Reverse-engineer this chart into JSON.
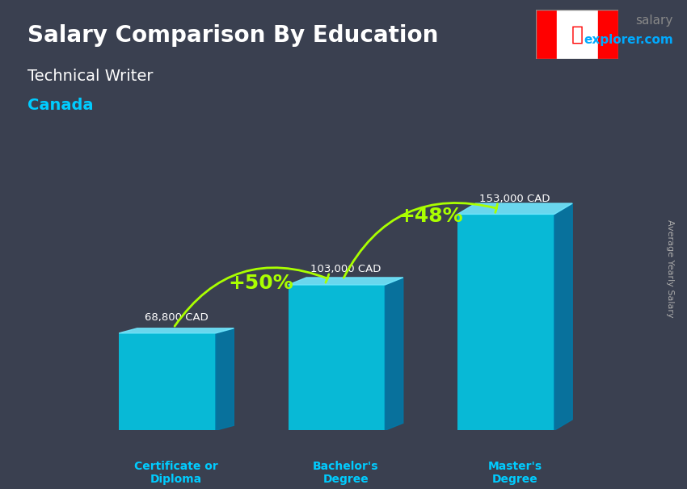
{
  "title": "Salary Comparison By Education",
  "subtitle": "Technical Writer",
  "country": "Canada",
  "categories": [
    "Certificate or\nDiploma",
    "Bachelor's\nDegree",
    "Master's\nDegree"
  ],
  "values": [
    68800,
    103000,
    153000
  ],
  "value_labels": [
    "68,800 CAD",
    "103,000 CAD",
    "153,000 CAD"
  ],
  "pct_labels": [
    "+50%",
    "+48%"
  ],
  "bar_color_top": "#00d4f0",
  "bar_color_bottom": "#0090c0",
  "bar_color_side": "#006a9a",
  "background_color": "#1a1a2e",
  "title_color": "#ffffff",
  "subtitle_color": "#ffffff",
  "country_color": "#00ccff",
  "label_color": "#ffffff",
  "pct_color": "#aaff00",
  "arrow_color": "#aaff00",
  "site_color_salary": "#555555",
  "site_color_explorer": "#00aaff",
  "ylabel": "Average Yearly Salary",
  "ylim": [
    0,
    180000
  ],
  "bar_width": 0.45
}
